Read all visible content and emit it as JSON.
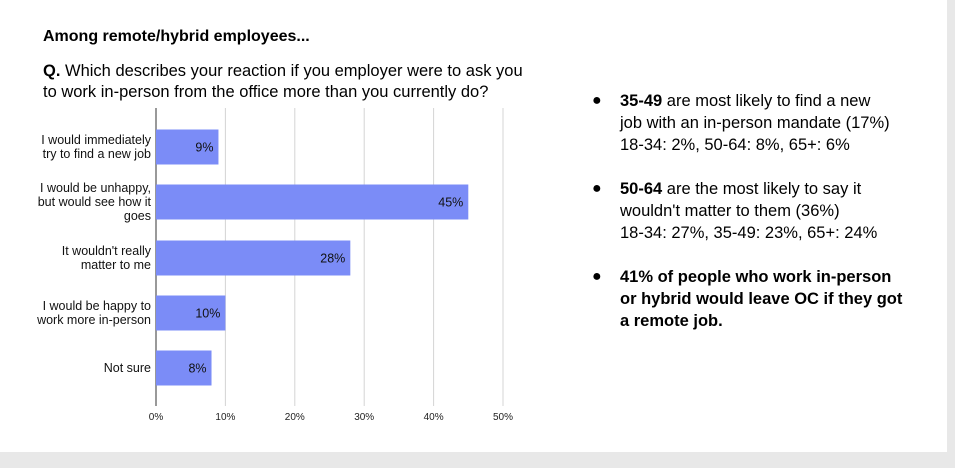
{
  "heading": "Among remote/hybrid employees...",
  "question": {
    "prefix": "Q.",
    "line1": "Which describes your reaction if you employer were to ask you",
    "line2": "to work in-person from the office more than you currently do?"
  },
  "chart_data": {
    "type": "bar",
    "orientation": "horizontal",
    "categories": [
      [
        "I would immediately",
        "try to find a new job"
      ],
      [
        "I would be unhappy,",
        "but would see how it",
        "goes"
      ],
      [
        "It wouldn't really",
        "matter to me"
      ],
      [
        "I would be happy to",
        "work more in-person"
      ],
      [
        "Not sure"
      ]
    ],
    "values": [
      9,
      45,
      28,
      10,
      8
    ],
    "value_labels": [
      "9%",
      "45%",
      "28%",
      "10%",
      "8%"
    ],
    "xlim": [
      0,
      50
    ],
    "x_ticks": [
      "0%",
      "10%",
      "20%",
      "30%",
      "40%",
      "50%"
    ],
    "grid": true,
    "bar_color": "#7b8cf7"
  },
  "bullets": [
    {
      "bold": "35-49",
      "lines": [
        " are most likely to find a new",
        "job with an in-person mandate (17%)",
        "18-34: 2%, 50-64: 8%, 65+: 6%"
      ]
    },
    {
      "bold": "50-64",
      "lines": [
        " are the most likely to say it",
        "wouldn't matter to them (36%)",
        "18-34: 27%, 35-49: 23%, 65+: 24%"
      ]
    },
    {
      "bold_lines": [
        "41% of people who work in-person",
        "or hybrid would leave OC if they got",
        "a remote job."
      ]
    }
  ],
  "bullet_glyph": "●"
}
